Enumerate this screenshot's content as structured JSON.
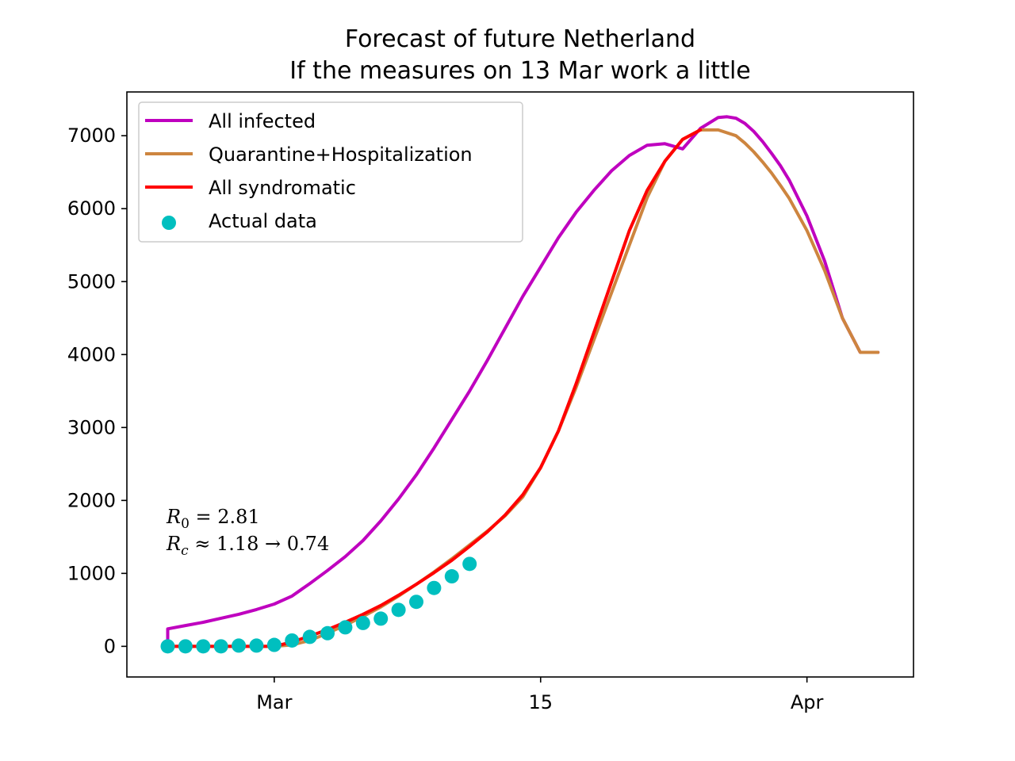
{
  "chart_data": {
    "type": "line",
    "title_line1": "Forecast of future Netherland",
    "title_line2": "If the measures on 13 Mar work a little",
    "xlabel": "",
    "ylabel": "",
    "x_ticks": [
      {
        "day": 0,
        "label": "Mar"
      },
      {
        "day": 15,
        "label": "15"
      },
      {
        "day": 30,
        "label": "Apr"
      }
    ],
    "y_ticks": [
      0,
      1000,
      2000,
      3000,
      4000,
      5000,
      6000,
      7000
    ],
    "xlim": [
      -8.3,
      36.0
    ],
    "ylim": [
      -420,
      7600
    ],
    "grid": false,
    "legend_position": "top-left",
    "annotations": {
      "r0_symbol": "R",
      "r0_sub": "0",
      "r0_text": " = 2.81",
      "rc_symbol": "R",
      "rc_sub": "c",
      "rc_text": " ≈ 1.18 → 0.74"
    },
    "series": [
      {
        "name": "All infected",
        "kind": "line",
        "color": "#bf00bf",
        "x": [
          -6,
          -6,
          -5,
          -4,
          -3,
          -2,
          -1,
          0,
          1,
          2,
          3,
          4,
          5,
          6,
          7,
          8,
          9,
          10,
          11,
          12,
          13,
          14,
          15,
          16,
          17,
          18,
          19,
          20,
          21,
          22,
          23,
          24,
          25,
          25.5,
          26,
          26.5,
          27,
          27.5,
          28,
          28.5,
          29,
          30,
          31,
          32,
          33,
          34
        ],
        "y": [
          0,
          240,
          285,
          330,
          385,
          440,
          505,
          580,
          690,
          860,
          1040,
          1230,
          1450,
          1720,
          2020,
          2350,
          2720,
          3110,
          3500,
          3920,
          4360,
          4800,
          5200,
          5600,
          5950,
          6250,
          6520,
          6730,
          6870,
          6890,
          6820,
          7100,
          7250,
          7260,
          7240,
          7170,
          7060,
          6920,
          6760,
          6590,
          6390,
          5900,
          5280,
          4500,
          4030,
          4030
        ]
      },
      {
        "name": "Quarantine+Hospitalization",
        "kind": "line",
        "color": "#cd853f",
        "x": [
          -6,
          -5,
          -4,
          -3,
          -2,
          -1,
          0,
          1,
          2,
          3,
          4,
          5,
          6,
          7,
          8,
          9,
          10,
          11,
          12,
          13,
          14,
          15,
          16,
          17,
          18,
          19,
          20,
          21,
          22,
          23,
          24,
          25,
          26,
          26.5,
          27,
          27.5,
          28,
          28.5,
          29,
          30,
          31,
          32,
          33,
          34
        ],
        "y": [
          0,
          0,
          0,
          0,
          0,
          0,
          0,
          20,
          80,
          180,
          290,
          410,
          540,
          690,
          850,
          1020,
          1200,
          1390,
          1580,
          1790,
          2050,
          2450,
          2950,
          3550,
          4200,
          4850,
          5500,
          6150,
          6650,
          6950,
          7080,
          7080,
          7000,
          6900,
          6780,
          6640,
          6490,
          6320,
          6140,
          5700,
          5150,
          4500,
          4030,
          4030
        ]
      },
      {
        "name": "All syndromatic",
        "kind": "line",
        "color": "#ff0000",
        "x": [
          -6,
          -5,
          -4,
          -3,
          -2,
          -1,
          0,
          1,
          2,
          3,
          4,
          5,
          6,
          7,
          8,
          9,
          10,
          11,
          12,
          13,
          14,
          15,
          16,
          17,
          18,
          19,
          20,
          21,
          22,
          23,
          24
        ],
        "y": [
          0,
          0,
          0,
          0,
          0,
          0,
          0,
          60,
          140,
          230,
          330,
          440,
          560,
          700,
          850,
          1010,
          1180,
          1370,
          1570,
          1800,
          2080,
          2450,
          2950,
          3600,
          4300,
          5000,
          5700,
          6250,
          6650,
          6950,
          7080
        ]
      },
      {
        "name": "Actual data",
        "kind": "scatter",
        "color": "#00bfbf",
        "x": [
          -6,
          -5,
          -4,
          -3,
          -2,
          -1,
          0,
          1,
          2,
          3,
          4,
          5,
          6,
          7,
          8,
          9,
          10,
          11
        ],
        "y": [
          0,
          0,
          0,
          0,
          10,
          10,
          20,
          80,
          130,
          180,
          260,
          320,
          380,
          500,
          610,
          800,
          960,
          1130
        ]
      }
    ]
  }
}
